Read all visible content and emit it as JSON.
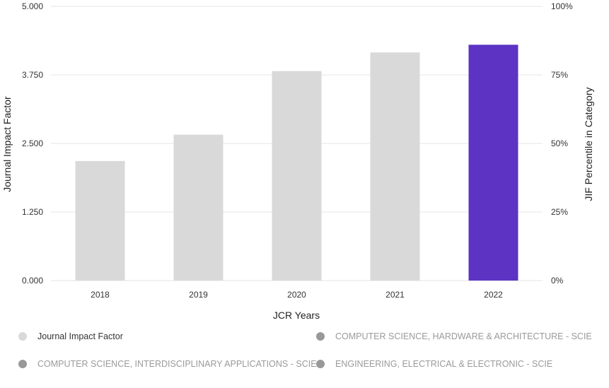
{
  "chart_data": {
    "type": "bar",
    "categories": [
      "2018",
      "2019",
      "2020",
      "2021",
      "2022"
    ],
    "series": [
      {
        "name": "Journal Impact Factor",
        "values": [
          2.18,
          2.66,
          3.82,
          4.16,
          4.3
        ]
      }
    ],
    "highlight_category": "2022",
    "colors": {
      "bar": "#d9d9d9",
      "highlight": "#5c33c3",
      "grid": "#e6e6e6",
      "legend_inactive": "#999999"
    },
    "xlabel": "JCR Years",
    "ylabel": "Journal Impact Factor",
    "y2label": "JIF Percentile in Category",
    "ylim": [
      0,
      5
    ],
    "y2lim": [
      0,
      100
    ],
    "yticks": [
      "0.000",
      "1.250",
      "2.500",
      "3.750",
      "5.000"
    ],
    "y2ticks": [
      "0%",
      "25%",
      "50%",
      "75%",
      "100%"
    ],
    "grid": true,
    "legend_position": "bottom"
  },
  "legend": [
    {
      "label": "Journal Impact Factor",
      "color": "#d9d9d9",
      "active": true
    },
    {
      "label": "COMPUTER SCIENCE, HARDWARE & ARCHITECTURE - SCIE",
      "color": "#999999",
      "active": false
    },
    {
      "label": "COMPUTER SCIENCE, INTERDISCIPLINARY APPLICATIONS - SCIE",
      "color": "#999999",
      "active": false
    },
    {
      "label": "ENGINEERING, ELECTRICAL & ELECTRONIC - SCIE",
      "color": "#999999",
      "active": false
    }
  ]
}
